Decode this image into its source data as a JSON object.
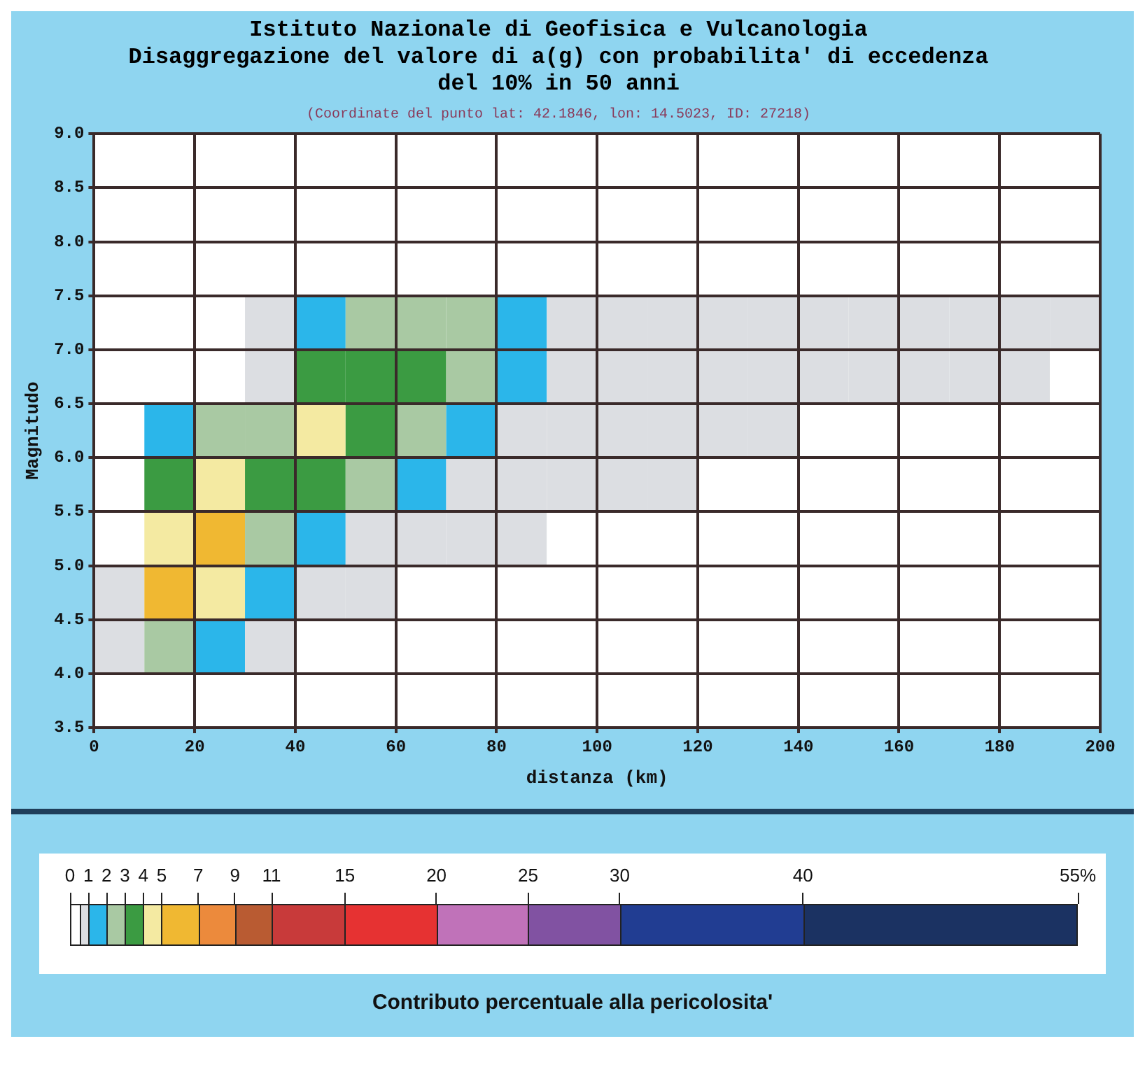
{
  "chart_data": {
    "type": "heatmap",
    "title": "Istituto Nazionale di Geofisica e Vulcanologia\nDisaggregazione del valore di a(g) con probabilita' di eccedenza\ndel 10% in 50 anni",
    "subtitle": "(Coordinate del punto lat: 42.1846, lon: 14.5023, ID: 27218)",
    "xlabel": "distanza (km)",
    "ylabel": "Magnitudo",
    "clabel": "Contributo percentuale alla pericolosita'",
    "xlim": [
      0,
      200
    ],
    "xticks": [
      0,
      20,
      40,
      60,
      80,
      100,
      120,
      140,
      160,
      180,
      200
    ],
    "ylim": [
      3.5,
      9.0
    ],
    "yticks": [
      3.5,
      {
        "value": 4,
        "label": "4.0"
      },
      4.5,
      {
        "value": 5,
        "label": "5.0"
      },
      5.5,
      {
        "value": 6,
        "label": "6.0"
      },
      6.5,
      {
        "value": 7,
        "label": "7.0"
      },
      7.5,
      {
        "value": 8,
        "label": "8.0"
      },
      8.5,
      {
        "value": 9,
        "label": "9.0"
      }
    ],
    "cells": [
      [
        0,
        0,
        0,
        0,
        0,
        0,
        0,
        0,
        0,
        0,
        0,
        0,
        0,
        0,
        0,
        0,
        0,
        0,
        0,
        0
      ],
      [
        0,
        0,
        0,
        0,
        0,
        0,
        0,
        0,
        0,
        0,
        0,
        0,
        0,
        0,
        0,
        0,
        0,
        0,
        0,
        0
      ],
      [
        0,
        0,
        0,
        0,
        0,
        0,
        0,
        0,
        0,
        0,
        0,
        0,
        0,
        0,
        0,
        0,
        0,
        0,
        0,
        0
      ],
      [
        0,
        0,
        0,
        0.75,
        1.5,
        2.5,
        2.5,
        2.5,
        1.5,
        0.75,
        0.75,
        0.75,
        0.75,
        0.75,
        0.75,
        0.75,
        0.75,
        0.75,
        0.75,
        0.75
      ],
      [
        0,
        0,
        0,
        0.75,
        3.5,
        3.5,
        3.5,
        2.5,
        1.5,
        0.75,
        0.75,
        0.75,
        0.75,
        0.75,
        0.75,
        0.75,
        0.75,
        0.75,
        0.75,
        0
      ],
      [
        0,
        1.5,
        2.5,
        2.5,
        4.5,
        3.5,
        2.5,
        1.5,
        0.75,
        0.75,
        0.75,
        0.75,
        0.75,
        0.75,
        0,
        0,
        0,
        0,
        0,
        0
      ],
      [
        0,
        3.5,
        4.5,
        3.5,
        3.5,
        2.5,
        1.5,
        0.75,
        0.75,
        0.75,
        0.75,
        0.75,
        0,
        0,
        0,
        0,
        0,
        0,
        0,
        0
      ],
      [
        0,
        4.5,
        6,
        2.5,
        1.5,
        0.75,
        0.75,
        0.75,
        0.75,
        0,
        0,
        0,
        0,
        0,
        0,
        0,
        0,
        0,
        0,
        0
      ],
      [
        0.75,
        6,
        4.5,
        1.5,
        0.75,
        0.75,
        0,
        0,
        0,
        0,
        0,
        0,
        0,
        0,
        0,
        0,
        0,
        0,
        0,
        0
      ],
      [
        0.75,
        2.5,
        1.5,
        0.75,
        0,
        0,
        0,
        0,
        0,
        0,
        0,
        0,
        0,
        0,
        0,
        0,
        0,
        0,
        0,
        0
      ],
      [
        0,
        0,
        0,
        0,
        0,
        0,
        0,
        0,
        0,
        0,
        0,
        0,
        0,
        0,
        0,
        0,
        0,
        0,
        0,
        0
      ]
    ],
    "clim": [
      0,
      55
    ],
    "cticks": [
      0,
      {
        "value": 0.5,
        "label": null
      },
      1,
      2,
      3,
      4,
      5,
      7,
      9,
      11,
      15,
      20,
      25,
      30,
      40,
      {
        "value": 55,
        "label": "55%"
      }
    ],
    "colors": [
      "#ffffff",
      "#dcdee2",
      "#2bb6ea",
      "#a9c9a3",
      "#3b9b42",
      "#f4eaa2",
      "#f0b832",
      "#ec8a3c",
      "#b95b32",
      "#c83a3a",
      "#e63232",
      "#c072b9",
      "#8152a2",
      "#213d92",
      "#1b3262"
    ],
    "grid": true
  }
}
